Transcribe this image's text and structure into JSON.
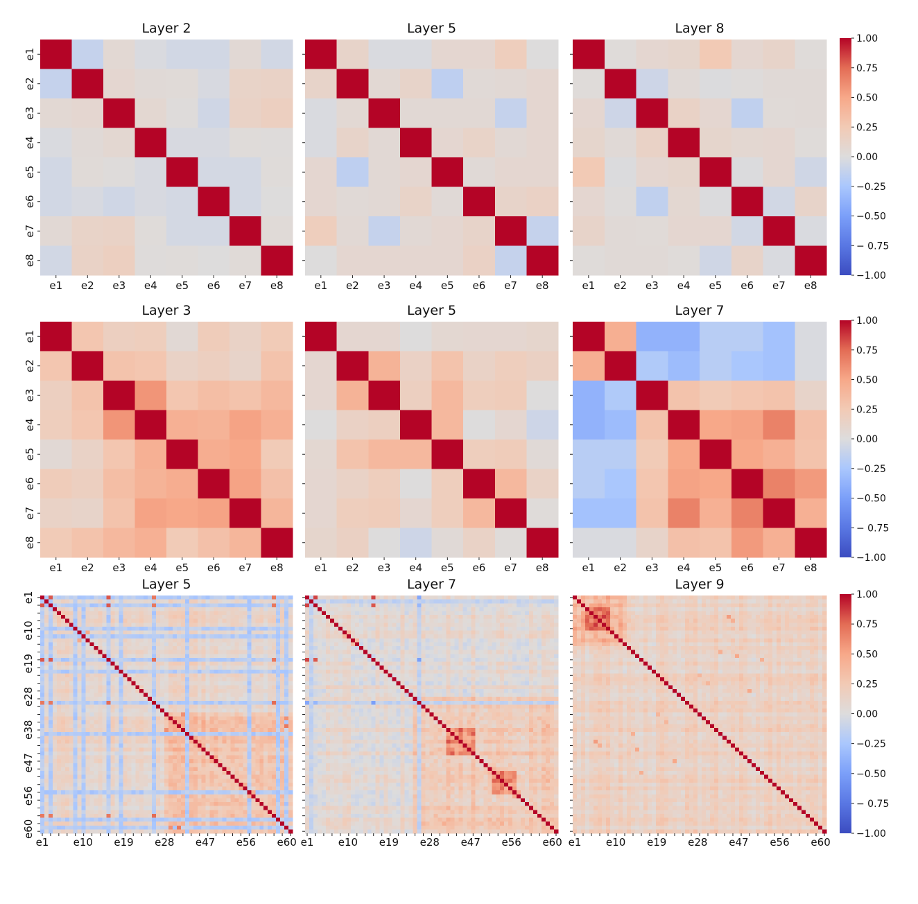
{
  "colormap": {
    "name": "coolwarm",
    "stops": [
      {
        "v": -1.0,
        "color": "#3b4cc0"
      },
      {
        "v": -0.75,
        "color": "#5977e3"
      },
      {
        "v": -0.5,
        "color": "#7b9ff9"
      },
      {
        "v": -0.25,
        "color": "#aac7fd"
      },
      {
        "v": 0.0,
        "color": "#dddcdc"
      },
      {
        "v": 0.25,
        "color": "#f2cab5"
      },
      {
        "v": 0.5,
        "color": "#f7a889"
      },
      {
        "v": 0.75,
        "color": "#e36c55"
      },
      {
        "v": 1.0,
        "color": "#b40426"
      }
    ]
  },
  "colorbar": {
    "ticks": [
      1.0,
      0.75,
      0.5,
      0.25,
      0.0,
      -0.25,
      -0.5,
      -0.75,
      -1.0
    ],
    "tick_labels": [
      "1.00",
      "0.75",
      "0.50",
      "0.25",
      "0.00",
      "−0.25",
      "−0.50",
      "− 0.75",
      "−1.00"
    ],
    "range": [
      -1.0,
      1.0
    ]
  },
  "chart_data": [
    {
      "type": "heatmap",
      "row": 0,
      "col": 0,
      "title": "Layer 2",
      "labels": [
        "e1",
        "e2",
        "e3",
        "e4",
        "e5",
        "e6",
        "e7",
        "e8"
      ],
      "show_ylabels": true,
      "values": [
        [
          1.0,
          -0.12,
          0.06,
          -0.02,
          -0.06,
          -0.06,
          0.05,
          -0.06
        ],
        [
          -0.12,
          1.0,
          0.08,
          0.04,
          0.03,
          -0.03,
          0.13,
          0.14
        ],
        [
          0.06,
          0.08,
          1.0,
          0.07,
          0.01,
          -0.07,
          0.14,
          0.18
        ],
        [
          -0.02,
          0.04,
          0.07,
          1.0,
          -0.03,
          -0.03,
          0.02,
          0.01
        ],
        [
          -0.06,
          0.03,
          0.01,
          -0.03,
          1.0,
          -0.05,
          -0.05,
          0.02
        ],
        [
          -0.06,
          -0.03,
          -0.07,
          -0.03,
          -0.05,
          1.0,
          -0.05,
          0.0
        ],
        [
          0.05,
          0.13,
          0.14,
          0.02,
          -0.05,
          -0.05,
          1.0,
          0.03
        ],
        [
          -0.06,
          0.14,
          0.18,
          0.01,
          0.02,
          0.0,
          0.03,
          1.0
        ]
      ]
    },
    {
      "type": "heatmap",
      "row": 0,
      "col": 1,
      "title": "Layer 5",
      "labels": [
        "e1",
        "e2",
        "e3",
        "e4",
        "e5",
        "e6",
        "e7",
        "e8"
      ],
      "show_ylabels": false,
      "values": [
        [
          1.0,
          0.12,
          -0.02,
          -0.02,
          0.08,
          0.08,
          0.2,
          0.0
        ],
        [
          0.12,
          1.0,
          0.06,
          0.12,
          -0.15,
          0.04,
          0.05,
          0.08
        ],
        [
          -0.02,
          0.06,
          1.0,
          0.05,
          0.05,
          0.05,
          -0.12,
          0.08
        ],
        [
          -0.02,
          0.12,
          0.05,
          1.0,
          0.08,
          0.13,
          0.05,
          0.08
        ],
        [
          0.08,
          -0.15,
          0.05,
          0.08,
          1.0,
          0.04,
          0.08,
          0.08
        ],
        [
          0.08,
          0.04,
          0.05,
          0.13,
          0.04,
          1.0,
          0.12,
          0.15
        ],
        [
          0.2,
          0.05,
          -0.12,
          0.05,
          0.08,
          0.12,
          1.0,
          -0.12
        ],
        [
          0.0,
          0.08,
          0.08,
          0.08,
          0.08,
          0.15,
          -0.12,
          1.0
        ]
      ]
    },
    {
      "type": "heatmap",
      "row": 0,
      "col": 2,
      "title": "Layer 8",
      "labels": [
        "e1",
        "e2",
        "e3",
        "e4",
        "e5",
        "e6",
        "e7",
        "e8"
      ],
      "show_ylabels": false,
      "values": [
        [
          1.0,
          0.02,
          0.08,
          0.1,
          0.25,
          0.08,
          0.12,
          0.02
        ],
        [
          0.02,
          1.0,
          -0.08,
          0.04,
          -0.01,
          0.01,
          0.04,
          0.04
        ],
        [
          0.08,
          -0.08,
          1.0,
          0.14,
          0.08,
          -0.14,
          0.03,
          0.04
        ],
        [
          0.1,
          0.04,
          0.14,
          1.0,
          0.1,
          0.07,
          0.08,
          0.02
        ],
        [
          0.25,
          -0.01,
          0.08,
          0.1,
          1.0,
          -0.01,
          0.08,
          -0.07
        ],
        [
          0.08,
          0.01,
          -0.14,
          0.07,
          -0.01,
          1.0,
          -0.06,
          0.12
        ],
        [
          0.12,
          0.04,
          0.03,
          0.08,
          0.08,
          -0.06,
          1.0,
          -0.02
        ],
        [
          0.02,
          0.04,
          0.04,
          0.02,
          -0.07,
          0.12,
          -0.02,
          1.0
        ]
      ]
    },
    {
      "type": "heatmap",
      "row": 1,
      "col": 0,
      "title": "Layer 3",
      "labels": [
        "e1",
        "e2",
        "e3",
        "e4",
        "e5",
        "e6",
        "e7",
        "e8"
      ],
      "show_ylabels": true,
      "values": [
        [
          1.0,
          0.28,
          0.18,
          0.2,
          0.05,
          0.22,
          0.14,
          0.24
        ],
        [
          0.28,
          1.0,
          0.3,
          0.28,
          0.14,
          0.18,
          0.12,
          0.3
        ],
        [
          0.18,
          0.3,
          1.0,
          0.58,
          0.28,
          0.34,
          0.3,
          0.38
        ],
        [
          0.2,
          0.28,
          0.58,
          1.0,
          0.44,
          0.42,
          0.52,
          0.44
        ],
        [
          0.05,
          0.14,
          0.28,
          0.44,
          1.0,
          0.46,
          0.5,
          0.24
        ],
        [
          0.22,
          0.18,
          0.34,
          0.42,
          0.46,
          1.0,
          0.52,
          0.32
        ],
        [
          0.14,
          0.12,
          0.3,
          0.52,
          0.5,
          0.52,
          1.0,
          0.4
        ],
        [
          0.24,
          0.3,
          0.38,
          0.44,
          0.24,
          0.32,
          0.4,
          1.0
        ]
      ]
    },
    {
      "type": "heatmap",
      "row": 1,
      "col": 1,
      "title": "Layer 5",
      "labels": [
        "e1",
        "e2",
        "e3",
        "e4",
        "e5",
        "e6",
        "e7",
        "e8"
      ],
      "show_ylabels": false,
      "values": [
        [
          1.0,
          0.08,
          0.08,
          0.0,
          0.07,
          0.08,
          0.08,
          0.1
        ],
        [
          0.08,
          1.0,
          0.42,
          0.15,
          0.3,
          0.14,
          0.2,
          0.16
        ],
        [
          0.08,
          0.42,
          1.0,
          0.18,
          0.38,
          0.2,
          0.22,
          0.0
        ],
        [
          0.0,
          0.15,
          0.18,
          1.0,
          0.38,
          0.0,
          0.08,
          -0.08
        ],
        [
          0.07,
          0.3,
          0.38,
          0.38,
          1.0,
          0.2,
          0.22,
          0.04
        ],
        [
          0.08,
          0.14,
          0.2,
          0.0,
          0.2,
          1.0,
          0.38,
          0.14
        ],
        [
          0.08,
          0.2,
          0.22,
          0.08,
          0.2,
          0.38,
          1.0,
          0.02
        ],
        [
          0.1,
          0.16,
          0.0,
          -0.08,
          0.04,
          0.14,
          0.02,
          1.0
        ]
      ]
    },
    {
      "type": "heatmap",
      "row": 1,
      "col": 2,
      "title": "Layer 7",
      "labels": [
        "e1",
        "e2",
        "e3",
        "e4",
        "e5",
        "e6",
        "e7",
        "e8"
      ],
      "show_ylabels": false,
      "values": [
        [
          1.0,
          0.45,
          -0.38,
          -0.38,
          -0.18,
          -0.18,
          -0.28,
          -0.02
        ],
        [
          0.45,
          1.0,
          -0.22,
          -0.32,
          -0.18,
          -0.25,
          -0.28,
          -0.02
        ],
        [
          -0.38,
          -0.22,
          1.0,
          0.3,
          0.24,
          0.28,
          0.3,
          0.12
        ],
        [
          -0.38,
          -0.32,
          0.3,
          1.0,
          0.5,
          0.52,
          0.66,
          0.32
        ],
        [
          -0.18,
          -0.18,
          0.24,
          0.5,
          1.0,
          0.5,
          0.44,
          0.3
        ],
        [
          -0.18,
          -0.25,
          0.28,
          0.52,
          0.5,
          1.0,
          0.66,
          0.56
        ],
        [
          -0.28,
          -0.28,
          0.3,
          0.66,
          0.44,
          0.66,
          1.0,
          0.44
        ],
        [
          -0.02,
          -0.02,
          0.12,
          0.32,
          0.3,
          0.56,
          0.44,
          1.0
        ]
      ]
    },
    {
      "type": "heatmap",
      "row": 2,
      "col": 0,
      "title": "Layer 5",
      "size": 61,
      "xtick_labels": [
        "e1",
        "e10",
        "e19",
        "e28",
        "e47",
        "e56",
        "e60"
      ],
      "ytick_labels": [
        "e1",
        "e10",
        "e19",
        "e28",
        "e38",
        "e47",
        "e56",
        "e60"
      ],
      "show_ylabels": true,
      "baseline": 0.08,
      "negative_lines": [
        0,
        2,
        8,
        10,
        16,
        19,
        27,
        35,
        50,
        57,
        59
      ],
      "negative_line_value": -0.22,
      "strong_pairs": [
        [
          0,
          2,
          0.8
        ],
        [
          0,
          16,
          0.8
        ],
        [
          2,
          16,
          0.8
        ],
        [
          0,
          27,
          0.7
        ],
        [
          2,
          27,
          0.7
        ],
        [
          16,
          27,
          0.75
        ],
        [
          0,
          56,
          0.7
        ],
        [
          2,
          56,
          0.7
        ],
        [
          16,
          56,
          0.7
        ],
        [
          27,
          56,
          0.75
        ],
        [
          30,
          34,
          0.6
        ],
        [
          31,
          59,
          0.6
        ],
        [
          33,
          59,
          0.7
        ],
        [
          9,
          11,
          0.5
        ],
        [
          41,
          42,
          0.5
        ],
        [
          48,
          49,
          0.45
        ],
        [
          50,
          51,
          0.45
        ]
      ],
      "warm_block": {
        "from": 30,
        "to": 60,
        "value": 0.22
      }
    },
    {
      "type": "heatmap",
      "row": 2,
      "col": 1,
      "title": "Layer 7",
      "size": 61,
      "xtick_labels": [
        "e1",
        "e10",
        "e19",
        "e28",
        "e47",
        "e56",
        "e60"
      ],
      "ytick_labels": [],
      "show_ylabels": false,
      "baseline": 0.05,
      "negative_lines": [
        1,
        27
      ],
      "negative_line_value": -0.15,
      "strong_pairs": [
        [
          0,
          2,
          0.85
        ],
        [
          0,
          16,
          0.85
        ],
        [
          2,
          16,
          0.8
        ],
        [
          0,
          27,
          -0.45
        ],
        [
          2,
          27,
          -0.35
        ],
        [
          16,
          27,
          -0.5
        ],
        [
          9,
          10,
          0.4
        ],
        [
          11,
          12,
          0.35
        ],
        [
          32,
          39,
          0.35
        ],
        [
          33,
          58,
          0.45
        ],
        [
          31,
          56,
          0.35
        ],
        [
          44,
          45,
          0.4
        ],
        [
          50,
          51,
          0.45
        ]
      ],
      "warm_block": {
        "from": 26,
        "to": 60,
        "value": 0.22
      },
      "hot_clusters": [
        {
          "from": 34,
          "to": 40,
          "value": 0.4
        },
        {
          "from": 45,
          "to": 50,
          "value": 0.45
        }
      ]
    },
    {
      "type": "heatmap",
      "row": 2,
      "col": 2,
      "title": "Layer 9",
      "size": 61,
      "xtick_labels": [
        "e1",
        "e10",
        "e19",
        "e28",
        "e47",
        "e56",
        "e60"
      ],
      "ytick_labels": [],
      "show_ylabels": false,
      "baseline": 0.12,
      "negative_lines": [],
      "negative_line_value": 0,
      "strong_pairs": [
        [
          5,
          37,
          0.55
        ],
        [
          6,
          38,
          0.45
        ],
        [
          15,
          39,
          0.5
        ],
        [
          24,
          42,
          0.5
        ],
        [
          14,
          35,
          0.45
        ],
        [
          16,
          45,
          0.45
        ],
        [
          20,
          30,
          0.4
        ],
        [
          22,
          32,
          0.4
        ]
      ],
      "warm_block": {
        "from": 0,
        "to": 12,
        "value": 0.28
      },
      "hot_clusters": [
        {
          "from": 3,
          "to": 8,
          "value": 0.4
        }
      ]
    }
  ]
}
